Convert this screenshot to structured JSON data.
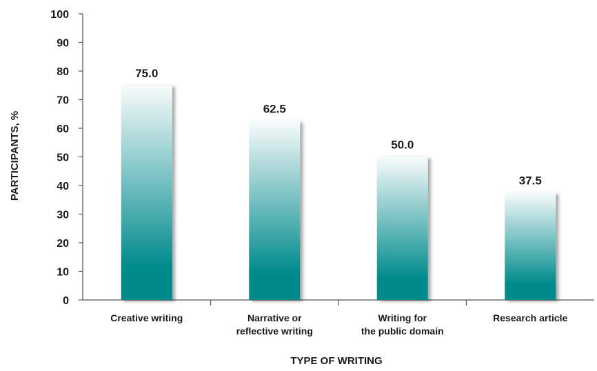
{
  "chart_data": {
    "type": "bar",
    "categories": [
      [
        "Creative writing"
      ],
      [
        "Narrative or",
        "reflective writing"
      ],
      [
        "Writing for",
        "the public domain"
      ],
      [
        "Research article"
      ]
    ],
    "values": [
      75.0,
      62.5,
      50.0,
      37.5
    ],
    "value_labels": [
      "75.0",
      "62.5",
      "50.0",
      "37.5"
    ],
    "xlabel": "TYPE OF WRITING",
    "ylabel": "PARTICIPANTS, %",
    "ylim": [
      0,
      100
    ],
    "yticks": [
      "0",
      "10",
      "20",
      "30",
      "40",
      "50",
      "60",
      "70",
      "80",
      "90",
      "100"
    ],
    "grid": false,
    "legend": "none",
    "colors": {
      "bar_bottom": "#008a8c",
      "bar_top": "#f8fbfb",
      "axis": "#555555"
    }
  }
}
